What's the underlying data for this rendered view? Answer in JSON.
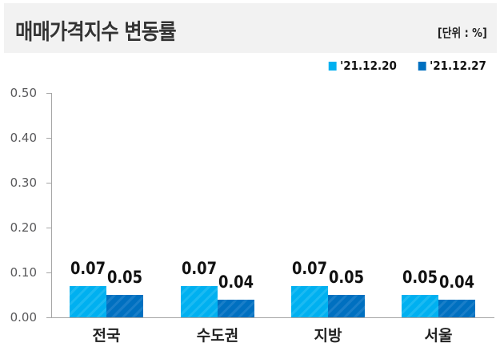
{
  "header": {
    "title": "매매가격지수 변동률",
    "unit": "[단위 : %]"
  },
  "colors": {
    "series1": "#00b0f0",
    "series2": "#0070c0"
  },
  "chart_data": {
    "type": "bar",
    "title": "매매가격지수 변동률",
    "unit": "[단위 : %]",
    "categories": [
      "전국",
      "수도권",
      "지방",
      "서울"
    ],
    "series": [
      {
        "name": "'21.12.20",
        "values": [
          0.07,
          0.07,
          0.07,
          0.05
        ]
      },
      {
        "name": "'21.12.27",
        "values": [
          0.05,
          0.04,
          0.05,
          0.04
        ]
      }
    ],
    "value_labels": [
      [
        "0.07",
        "0.07",
        "0.07",
        "0.05"
      ],
      [
        "0.05",
        "0.04",
        "0.05",
        "0.04"
      ]
    ],
    "yticks": [
      "0.00",
      "0.10",
      "0.20",
      "0.30",
      "0.40",
      "0.50"
    ],
    "ylim": [
      0,
      0.5
    ],
    "xlabel": "",
    "ylabel": "",
    "grid": false,
    "legend_position": "top-right"
  }
}
